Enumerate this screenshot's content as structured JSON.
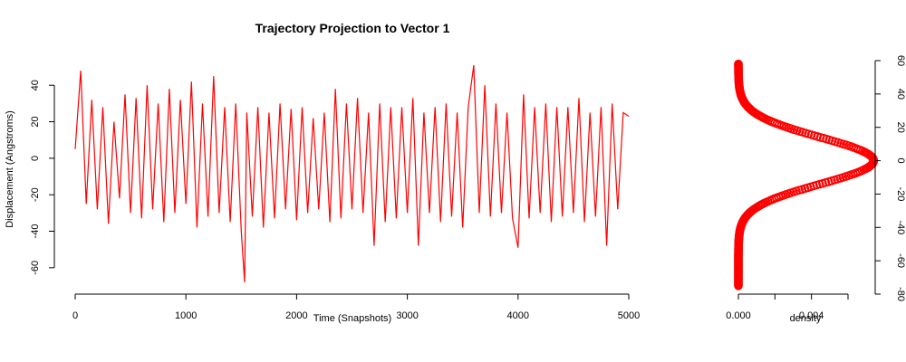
{
  "chart_data": [
    {
      "type": "line",
      "title": "Trajectory Projection to Vector 1",
      "xlabel": "Time (Snapshots)",
      "ylabel": "Displacement (Angstroms)",
      "xlim": [
        0,
        5000
      ],
      "ylim": [
        -70,
        52
      ],
      "x_ticks": [
        0,
        1000,
        2000,
        3000,
        4000,
        5000
      ],
      "y_ticks": [
        -60,
        -40,
        -20,
        0,
        20,
        40
      ],
      "grid": false,
      "series": [
        {
          "color": "#ff0000",
          "x": [
            0,
            50,
            100,
            150,
            200,
            250,
            300,
            350,
            400,
            450,
            500,
            550,
            600,
            650,
            700,
            750,
            800,
            850,
            900,
            950,
            1000,
            1050,
            1100,
            1150,
            1200,
            1250,
            1300,
            1350,
            1400,
            1450,
            1500,
            1530,
            1550,
            1600,
            1650,
            1700,
            1750,
            1800,
            1850,
            1900,
            1950,
            2000,
            2050,
            2100,
            2150,
            2200,
            2250,
            2300,
            2350,
            2400,
            2450,
            2500,
            2550,
            2600,
            2650,
            2700,
            2750,
            2800,
            2850,
            2900,
            2950,
            3000,
            3050,
            3100,
            3150,
            3200,
            3250,
            3300,
            3350,
            3400,
            3450,
            3500,
            3550,
            3600,
            3650,
            3700,
            3750,
            3800,
            3850,
            3900,
            3950,
            4000,
            4050,
            4100,
            4150,
            4200,
            4250,
            4300,
            4350,
            4400,
            4450,
            4500,
            4550,
            4600,
            4650,
            4700,
            4750,
            4800,
            4850,
            4900,
            4950,
            5000
          ],
          "y": [
            5,
            48,
            -25,
            32,
            -28,
            28,
            -36,
            20,
            -22,
            35,
            -30,
            33,
            -33,
            40,
            -28,
            30,
            -35,
            38,
            -30,
            32,
            -25,
            42,
            -38,
            30,
            -32,
            45,
            -30,
            28,
            -35,
            30,
            -40,
            -68,
            25,
            -32,
            28,
            -38,
            25,
            -33,
            30,
            -28,
            27,
            -34,
            28,
            -30,
            22,
            -28,
            25,
            -35,
            38,
            -33,
            30,
            -28,
            33,
            -30,
            25,
            -48,
            30,
            -35,
            28,
            -33,
            28,
            -30,
            33,
            -48,
            25,
            -30,
            28,
            -35,
            30,
            -32,
            25,
            -38,
            28,
            51,
            -30,
            40,
            -32,
            30,
            -30,
            25,
            -33,
            -49,
            35,
            -33,
            28,
            -30,
            30,
            -35,
            28,
            -32,
            28,
            -30,
            33,
            -35,
            25,
            -32,
            28,
            -48,
            30,
            -28,
            25,
            23
          ]
        }
      ]
    },
    {
      "type": "scatter",
      "xlabel": "density",
      "ylabel": "",
      "xlim": [
        0,
        0.006
      ],
      "ylim": [
        -80,
        60
      ],
      "x_ticks": [
        0,
        0.002,
        0.004,
        0.006
      ],
      "x_tick_labels": [
        "0.000",
        "",
        "0.004",
        ""
      ],
      "y_ticks": [
        -80,
        -60,
        -40,
        -20,
        0,
        20,
        40,
        60
      ],
      "y_axis_side": "right",
      "grid": false,
      "series": [
        {
          "color": "#ff0000",
          "mean": 0,
          "sd": 14,
          "peak_density": 0.0074,
          "y_range": [
            -75,
            58
          ]
        }
      ]
    }
  ]
}
